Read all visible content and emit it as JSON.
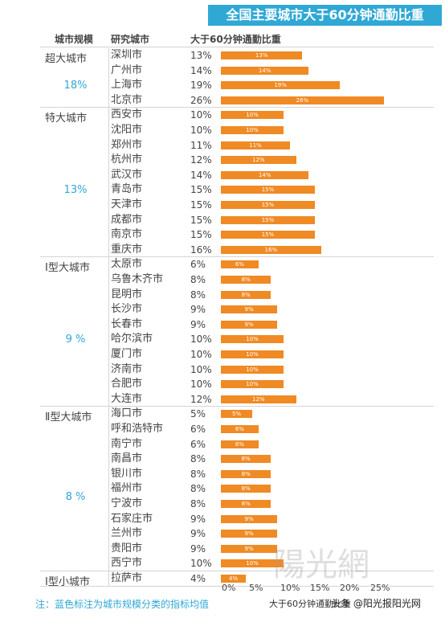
{
  "chart_data": {
    "type": "bar",
    "orientation": "horizontal",
    "title": "全国主要城市大于60分钟通勤比重",
    "xlabel": "大于60分钟通勤比重",
    "xlim": [
      0,
      30
    ],
    "x_ticks": [
      "0%",
      "5%",
      "10%",
      "15%",
      "20%",
      "25%"
    ],
    "headers": {
      "group": "城市规模",
      "city": "研究城市",
      "value": "大于60分钟通勤比重"
    },
    "groups": [
      {
        "name": "超大城市",
        "average": "18%",
        "cities": [
          {
            "name": "深圳市",
            "value": 13,
            "label": "13%"
          },
          {
            "name": "广州市",
            "value": 14,
            "label": "14%"
          },
          {
            "name": "上海市",
            "value": 19,
            "label": "19%"
          },
          {
            "name": "北京市",
            "value": 26,
            "label": "26%"
          }
        ]
      },
      {
        "name": "特大城市",
        "average": "13%",
        "cities": [
          {
            "name": "西安市",
            "value": 10,
            "label": "10%"
          },
          {
            "name": "沈阳市",
            "value": 10,
            "label": "10%"
          },
          {
            "name": "郑州市",
            "value": 11,
            "label": "11%"
          },
          {
            "name": "杭州市",
            "value": 12,
            "label": "12%"
          },
          {
            "name": "武汉市",
            "value": 14,
            "label": "14%"
          },
          {
            "name": "青岛市",
            "value": 15,
            "label": "15%"
          },
          {
            "name": "天津市",
            "value": 15,
            "label": "15%"
          },
          {
            "name": "成都市",
            "value": 15,
            "label": "15%"
          },
          {
            "name": "南京市",
            "value": 15,
            "label": "15%"
          },
          {
            "name": "重庆市",
            "value": 16,
            "label": "16%"
          }
        ]
      },
      {
        "name": "Ⅰ型大城市",
        "average": "9 %",
        "cities": [
          {
            "name": "太原市",
            "value": 6,
            "label": "6%"
          },
          {
            "name": "乌鲁木齐市",
            "value": 8,
            "label": "8%"
          },
          {
            "name": "昆明市",
            "value": 8,
            "label": "8%"
          },
          {
            "name": "长沙市",
            "value": 9,
            "label": "9%"
          },
          {
            "name": "长春市",
            "value": 9,
            "label": "9%"
          },
          {
            "name": "哈尔滨市",
            "value": 10,
            "label": "10%"
          },
          {
            "name": "厦门市",
            "value": 10,
            "label": "10%"
          },
          {
            "name": "济南市",
            "value": 10,
            "label": "10%"
          },
          {
            "name": "合肥市",
            "value": 10,
            "label": "10%"
          },
          {
            "name": "大连市",
            "value": 12,
            "label": "12%"
          }
        ]
      },
      {
        "name": "Ⅱ型大城市",
        "average": "8 %",
        "cities": [
          {
            "name": "海口市",
            "value": 5,
            "label": "5%"
          },
          {
            "name": "呼和浩特市",
            "value": 6,
            "label": "6%"
          },
          {
            "name": "南宁市",
            "value": 6,
            "label": "6%"
          },
          {
            "name": "南昌市",
            "value": 8,
            "label": "8%"
          },
          {
            "name": "银川市",
            "value": 8,
            "label": "8%"
          },
          {
            "name": "福州市",
            "value": 8,
            "label": "8%"
          },
          {
            "name": "宁波市",
            "value": 8,
            "label": "8%"
          },
          {
            "name": "石家庄市",
            "value": 9,
            "label": "9%"
          },
          {
            "name": "兰州市",
            "value": 9,
            "label": "9%"
          },
          {
            "name": "贵阳市",
            "value": 9,
            "label": "9%"
          },
          {
            "name": "西宁市",
            "value": 10,
            "label": "10%"
          }
        ]
      },
      {
        "name": "Ⅰ型小城市",
        "average": "",
        "cities": [
          {
            "name": "拉萨市",
            "value": 4,
            "label": "4%"
          }
        ]
      }
    ],
    "note": "注：蓝色标注为城市规模分类的指标均值",
    "colors": {
      "bar": "#f08a24",
      "accent": "#2fa8d5"
    }
  },
  "watermark": "陽光網",
  "credit": "头条 @阳光报阳光网"
}
